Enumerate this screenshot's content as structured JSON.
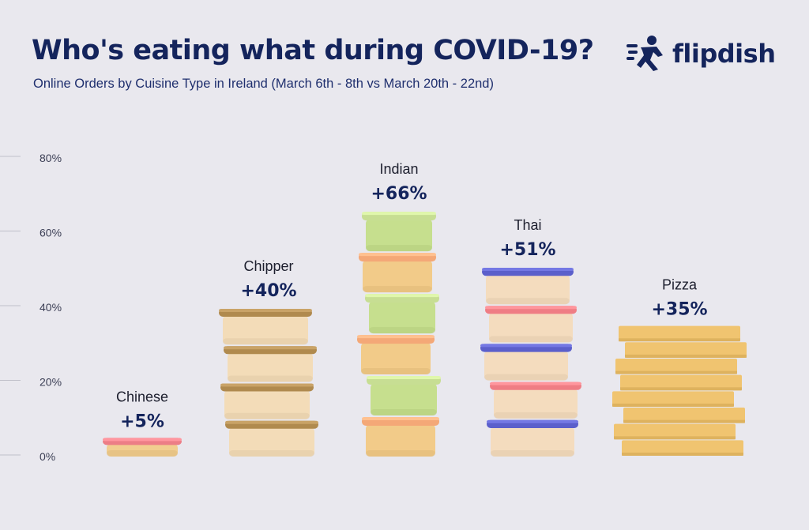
{
  "header": {
    "title": "Who's eating what during COVID-19?",
    "subtitle": "Online Orders by Cuisine Type in Ireland (March 6th - 8th vs March 20th - 22nd)"
  },
  "brand": {
    "name": "flipdish",
    "logo_icon": "runner-icon",
    "color": "#14245c"
  },
  "chart_data": {
    "type": "bar",
    "title": "Who's eating what during COVID-19?",
    "subtitle": "Online Orders by Cuisine Type in Ireland (March 6th - 8th vs March 20th - 22nd)",
    "xlabel": "",
    "ylabel": "",
    "categories": [
      "Chinese",
      "Chipper",
      "Indian",
      "Thai",
      "Pizza"
    ],
    "values": [
      5,
      40,
      66,
      51,
      35
    ],
    "value_labels": [
      "+5%",
      "+40%",
      "+66%",
      "+51%",
      "+35%"
    ],
    "y_ticks": [
      "0%",
      "20%",
      "40%",
      "60%",
      "80%"
    ],
    "ylim": [
      0,
      80
    ],
    "grid": false,
    "legend": "none",
    "colors": {
      "Chinese": {
        "lid": "#ec7d86",
        "box": "#f1cd8f"
      },
      "Chipper": {
        "lid": "#b08a4e",
        "box": "#f3dcb8"
      },
      "Indian": {
        "lid_a": "#c7de93",
        "lid_b": "#f4a877",
        "box_a": "#c6df8e",
        "box_b": "#f2cb89"
      },
      "Thai": {
        "lid_a": "#5b5fcb",
        "lid_b": "#ef7d84",
        "box": "#f4dcbe"
      },
      "Pizza": {
        "box": "#f0c470"
      }
    }
  }
}
